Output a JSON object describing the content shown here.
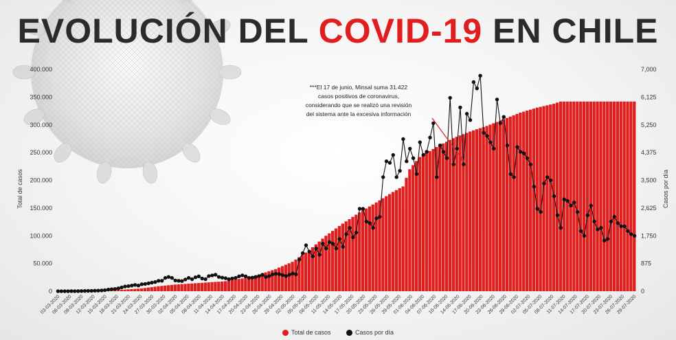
{
  "title": {
    "prefix": "EVOLUCIÓN DEL ",
    "accent": "COVID-19",
    "suffix": " EN CHILE"
  },
  "colors": {
    "accent": "#e11d1d",
    "bars": "#e01e1e",
    "line": "#111111",
    "title": "#2b2b2b"
  },
  "annotation": {
    "lines": [
      "***El 17 de junio, Minsal suma 31.422",
      "casos positivos de coronavirus,",
      "considerando que se realizó una revisión",
      "del sistema ante la excesiva información"
    ]
  },
  "legend": {
    "total_label": "Total de casos",
    "daily_label": "Casos por día"
  },
  "chart_data": {
    "type": "bar+line",
    "title": "EVOLUCIÓN DEL COVID-19 EN CHILE",
    "ylabel": "Total de casos",
    "y2label": "Casos por día",
    "ylim": [
      0,
      400000
    ],
    "y2lim": [
      0,
      7000
    ],
    "y_ticks": [
      "0",
      "50.000",
      "100.000",
      "150.000",
      "200.000",
      "250.000",
      "300.000",
      "350.000",
      "400.000"
    ],
    "y2_ticks": [
      "0",
      "875",
      "1,750",
      "2,625",
      "3,500",
      "4,375",
      "5,250",
      "6,125",
      "7,000"
    ],
    "x_tick_labels": [
      "03-03-2020",
      "06-03-2020",
      "09-03-2020",
      "12-03-2020",
      "15-03-2020",
      "18-03-2020",
      "21-03-2020",
      "24-03-2020",
      "27-03-2020",
      "30-03-2020",
      "02-04-2020",
      "05-04-2020",
      "08-04-2020",
      "11-04-2020",
      "14-04-2020",
      "17-04-2020",
      "20-04-2020",
      "23-04-2020",
      "26-04-2020",
      "29-04-2020",
      "02-05-2020",
      "05-05-2020",
      "08-05-2020",
      "11-05-2020",
      "14-05-2020",
      "17-05-2020",
      "20-05-2020",
      "23-05-2020",
      "26-05-2020",
      "29-05-2020",
      "01-06-2020",
      "04-06-2020",
      "07-06-2020",
      "10-06-2020",
      "14-06-2020",
      "17-06-2020",
      "20-06-2020",
      "23-06-2020",
      "26-06-2020",
      "29-06-2020",
      "02-07-2020",
      "05-07-2020",
      "08-07-2020",
      "11-07-2020",
      "14-07-2020",
      "17-07-2020",
      "20-07-2020",
      "23-07-2020",
      "26-07-2020",
      "29-07-2020"
    ],
    "series": [
      {
        "name": "Total de casos",
        "kind": "bar",
        "axis": "left",
        "keypoints": [
          [
            0,
            0
          ],
          [
            9,
            150
          ],
          [
            15,
            1200
          ],
          [
            20,
            3000
          ],
          [
            25,
            5000
          ],
          [
            30,
            9000
          ],
          [
            35,
            12000
          ],
          [
            40,
            14000
          ],
          [
            45,
            16000
          ],
          [
            50,
            18000
          ],
          [
            55,
            23000
          ],
          [
            60,
            30000
          ],
          [
            65,
            40000
          ],
          [
            70,
            53000
          ],
          [
            75,
            74000
          ],
          [
            80,
            100000
          ],
          [
            85,
            122000
          ],
          [
            90,
            142000
          ],
          [
            95,
            160000
          ],
          [
            100,
            179000
          ],
          [
            103,
            189000
          ],
          [
            105,
            220000
          ],
          [
            108,
            242000
          ],
          [
            113,
            260000
          ],
          [
            118,
            276000
          ],
          [
            123,
            288000
          ],
          [
            128,
            298000
          ],
          [
            133,
            310000
          ],
          [
            138,
            322000
          ],
          [
            143,
            331000
          ],
          [
            148,
            338000
          ],
          [
            150,
            342000
          ]
        ]
      },
      {
        "name": "Casos por día",
        "kind": "line",
        "axis": "right",
        "values": [
          0,
          0,
          1,
          0,
          4,
          3,
          5,
          7,
          8,
          10,
          14,
          17,
          20,
          27,
          34,
          51,
          63,
          72,
          90,
          120,
          150,
          160,
          180,
          200,
          180,
          220,
          230,
          250,
          270,
          290,
          330,
          330,
          420,
          450,
          420,
          340,
          330,
          320,
          370,
          420,
          380,
          440,
          470,
          400,
          380,
          480,
          500,
          520,
          450,
          430,
          410,
          380,
          400,
          420,
          470,
          500,
          470,
          420,
          430,
          450,
          480,
          520,
          450,
          480,
          530,
          550,
          540,
          510,
          480,
          520,
          560,
          530,
          1000,
          1200,
          1450,
          1250,
          1100,
          1350,
          1150,
          1500,
          1350,
          1550,
          1500,
          1350,
          1650,
          1400,
          1800,
          2000,
          1700,
          1850,
          2600,
          2600,
          2200,
          2150,
          2000,
          2300,
          2350,
          3600,
          4100,
          4050,
          4300,
          3600,
          3800,
          4800,
          4100,
          4500,
          4200,
          3700,
          4700,
          4300,
          4400,
          4850,
          5300,
          3600,
          4600,
          4400,
          4200,
          6100,
          4000,
          4500,
          5800,
          4000,
          5600,
          5400,
          6600,
          6400,
          6800,
          5000,
          4900,
          4700,
          4500,
          6050,
          5300,
          5500,
          4600,
          3700,
          3600,
          4550,
          4400,
          4350,
          4200,
          4000,
          3300,
          2600,
          2500,
          3400,
          3600,
          3500,
          3000,
          2400,
          2000,
          2900,
          2850,
          2700,
          2800,
          2500,
          1900,
          1750,
          2400,
          2700,
          2200,
          1950,
          2000,
          1600,
          1650,
          2200,
          2350,
          2150,
          2050,
          2050,
          1900,
          1800,
          1750
        ]
      }
    ],
    "grid": false,
    "legend_position": "bottom"
  }
}
